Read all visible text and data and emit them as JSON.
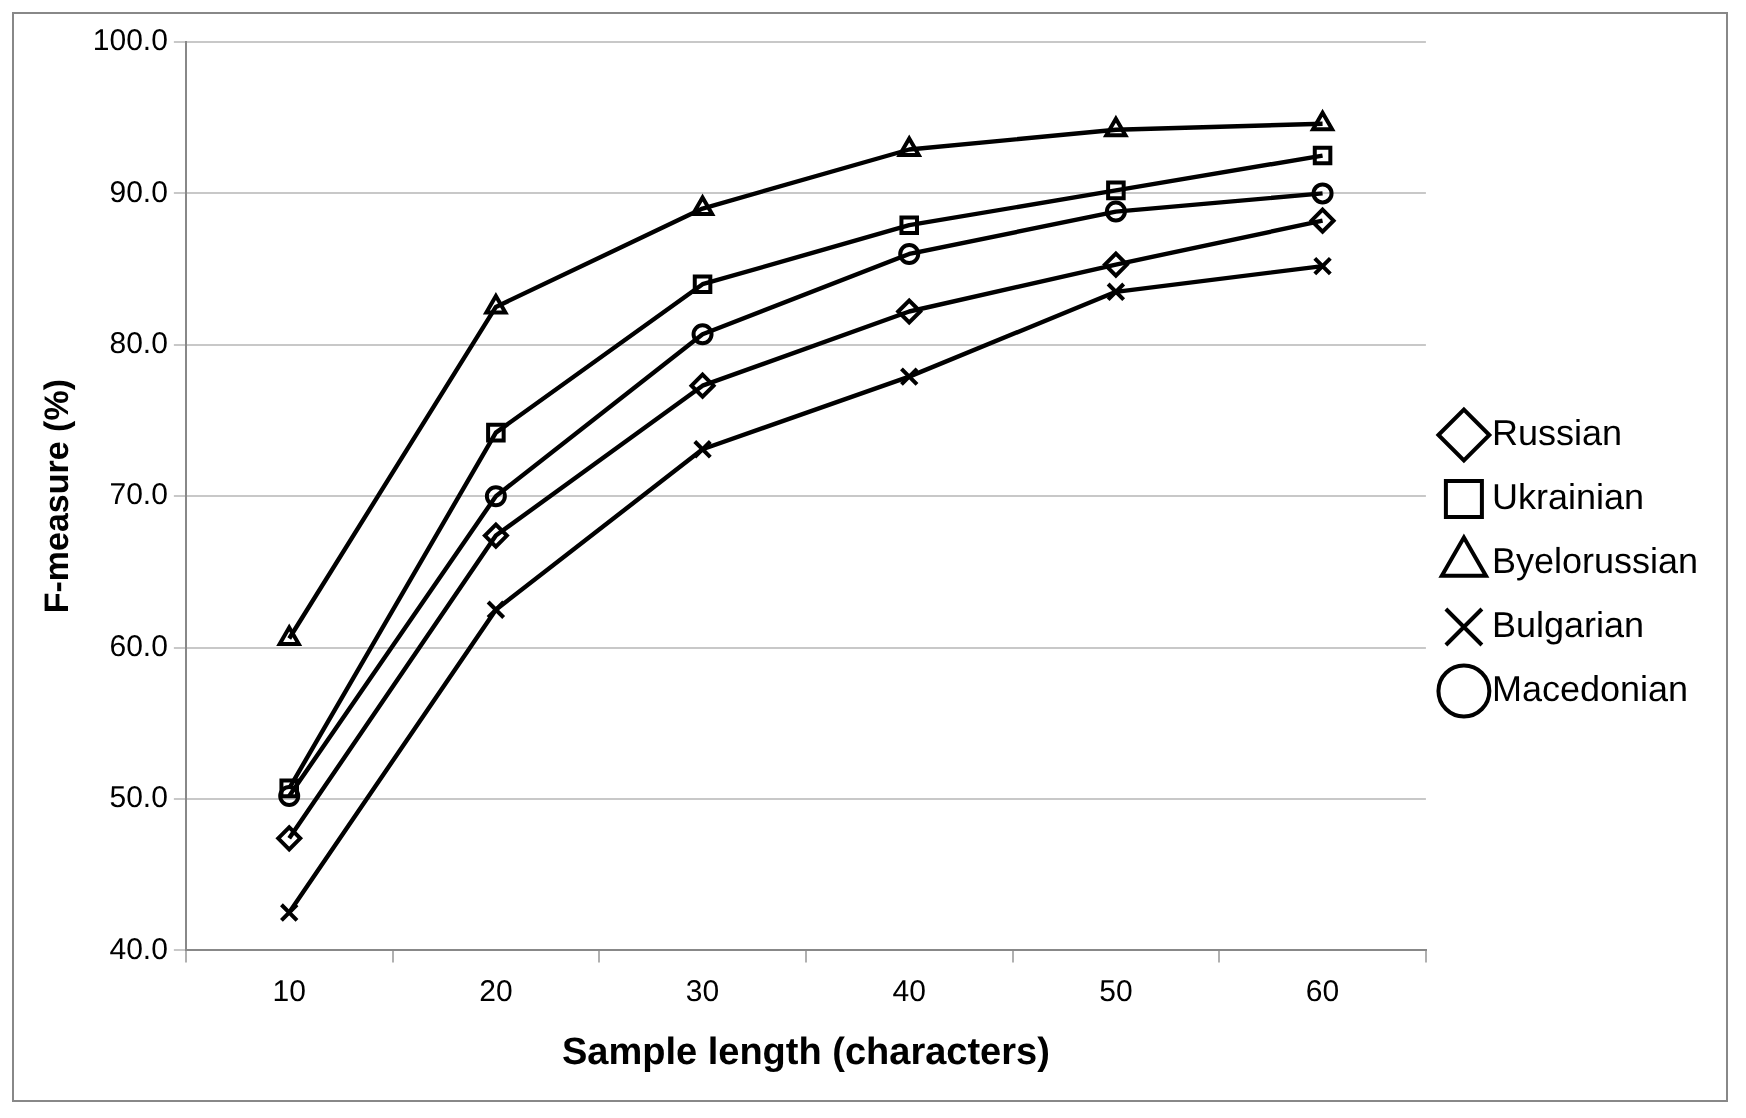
{
  "chart_data": {
    "type": "line",
    "xlabel": "Sample length (characters)",
    "ylabel": "F-measure (%)",
    "categories": [
      "10",
      "20",
      "30",
      "40",
      "50",
      "60"
    ],
    "ylim": [
      40,
      100
    ],
    "yticks": [
      {
        "value": 40,
        "label": "40.0"
      },
      {
        "value": 50,
        "label": "50.0"
      },
      {
        "value": 60,
        "label": "60.0"
      },
      {
        "value": 70,
        "label": "70.0"
      },
      {
        "value": 80,
        "label": "80.0"
      },
      {
        "value": 90,
        "label": "90.0"
      },
      {
        "value": 100,
        "label": "100.0"
      }
    ],
    "grid": "y",
    "legend": "right",
    "line_style": "solid",
    "series": [
      {
        "name": "Russian",
        "color": "#000000",
        "marker": "diamond",
        "values": [
          47.4,
          67.4,
          77.3,
          82.2,
          85.3,
          88.2
        ]
      },
      {
        "name": "Ukrainian",
        "color": "#000000",
        "marker": "square",
        "values": [
          50.7,
          74.2,
          84.0,
          87.9,
          90.2,
          92.5
        ]
      },
      {
        "name": "Byelorussian",
        "color": "#000000",
        "marker": "triangle",
        "values": [
          60.6,
          82.5,
          89.0,
          92.9,
          94.2,
          94.6
        ]
      },
      {
        "name": "Bulgarian",
        "color": "#000000",
        "marker": "cross",
        "values": [
          42.5,
          62.5,
          73.1,
          77.9,
          83.5,
          85.2
        ]
      },
      {
        "name": "Macedonian",
        "color": "#000000",
        "marker": "circle",
        "values": [
          50.2,
          70.0,
          80.7,
          86.0,
          88.8,
          90.0
        ]
      }
    ]
  }
}
